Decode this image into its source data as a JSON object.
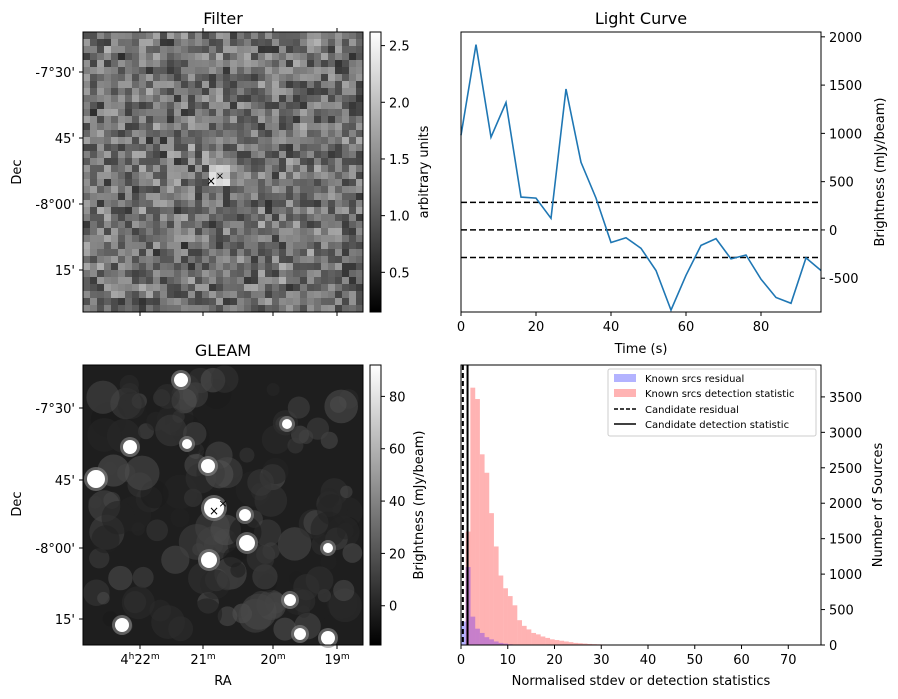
{
  "panels": {
    "filter": {
      "title": "Filter",
      "ylabel": "Dec",
      "dec_ticks": [
        "-7°30'",
        "45'",
        "-8°00'",
        "15'"
      ],
      "colorbar": {
        "label": "arbitrary units",
        "ticks": [
          "0.5",
          "1.0",
          "1.5",
          "2.0",
          "2.5"
        ]
      }
    },
    "gleam": {
      "title": "GLEAM",
      "ylabel": "Dec",
      "xlabel": "RA",
      "dec_ticks": [
        "-7°30'",
        "45'",
        "-8°00'",
        "15'"
      ],
      "ra_ticks": [
        {
          "main": "4",
          "sup1": "h",
          "mid": "22",
          "sup2": "m"
        },
        {
          "main": "21",
          "sup1": "",
          "mid": "",
          "sup2": "m"
        },
        {
          "main": "20",
          "sup1": "",
          "mid": "",
          "sup2": "m"
        },
        {
          "main": "19",
          "sup1": "",
          "mid": "",
          "sup2": "m"
        }
      ],
      "colorbar": {
        "label": "Brightness (mJy/beam)",
        "ticks": [
          "0",
          "20",
          "40",
          "60",
          "80"
        ]
      }
    },
    "lightcurve": {
      "title": "Light Curve",
      "xlabel": "Time (s)",
      "ylabel": "Brightness (mJy/beam)",
      "xticks": [
        "0",
        "20",
        "40",
        "60",
        "80"
      ],
      "yticks": [
        "-500",
        "0",
        "500",
        "1000",
        "1500",
        "2000"
      ]
    },
    "histogram": {
      "xlabel": "Normalised stdev or detection statistics",
      "ylabel": "Number of Sources",
      "xticks": [
        "0",
        "10",
        "20",
        "30",
        "40",
        "50",
        "60",
        "70"
      ],
      "yticks": [
        "0",
        "500",
        "1000",
        "1500",
        "2000",
        "2500",
        "3000",
        "3500"
      ],
      "legend": [
        "Known srcs residual",
        "Known srcs detection statistic",
        "Candidate residual",
        "Candidate detection statistic"
      ]
    }
  },
  "colors": {
    "line": "#1f77b4",
    "residual_hist": "#b3b3ff",
    "detection_hist": "#ffb3b3",
    "overlap_hist": "#c77fcb",
    "marker_blue": "#0000ff",
    "marker_red": "#ff0000"
  },
  "chart_data": [
    {
      "type": "heatmap",
      "title": "Filter",
      "ylabel": "Dec",
      "colorbar_label": "arbitrary units",
      "colorbar_range": [
        0.15,
        2.62
      ],
      "colormap": "gray"
    },
    {
      "type": "heatmap",
      "title": "GLEAM",
      "xlabel": "RA",
      "ylabel": "Dec",
      "colorbar_label": "Brightness (mJy/beam)",
      "colorbar_range": [
        -15,
        92
      ],
      "colormap": "gray"
    },
    {
      "type": "line",
      "title": "Light Curve",
      "xlabel": "Time (s)",
      "ylabel": "Brightness (mJy/beam)",
      "xlim": [
        0,
        96
      ],
      "ylim": [
        -850,
        2050
      ],
      "x": [
        0,
        4,
        8,
        12,
        16,
        20,
        24,
        28,
        32,
        36,
        40,
        44,
        48,
        52,
        56,
        60,
        64,
        68,
        72,
        76,
        80,
        84,
        88,
        92,
        96
      ],
      "y": [
        980,
        1920,
        960,
        1320,
        340,
        330,
        120,
        1460,
        700,
        330,
        -130,
        -80,
        -190,
        -420,
        -830,
        -470,
        -160,
        -90,
        -300,
        -260,
        -510,
        -700,
        -760,
        -290,
        -420
      ],
      "hlines": [
        {
          "y": 285,
          "style": "dashed"
        },
        {
          "y": 0,
          "style": "dashed"
        },
        {
          "y": -285,
          "style": "dashed"
        }
      ]
    },
    {
      "type": "bar",
      "xlabel": "Normalised stdev or detection statistics",
      "ylabel": "Number of Sources",
      "xlim": [
        0,
        77
      ],
      "ylim": [
        0,
        3950
      ],
      "bin_width": 1,
      "series": [
        {
          "name": "Known srcs residual",
          "bin_start": 0,
          "values": [
            330,
            1100,
            400,
            230,
            170,
            110,
            80,
            50,
            30,
            20,
            10,
            5
          ]
        },
        {
          "name": "Known srcs detection statistic",
          "bin_start": 0,
          "values": [
            60,
            1600,
            3630,
            3470,
            2690,
            2430,
            1860,
            1390,
            980,
            800,
            690,
            560,
            350,
            270,
            220,
            170,
            150,
            120,
            100,
            80,
            70,
            60,
            50,
            40,
            30,
            25,
            20,
            15,
            12,
            10,
            8,
            7,
            6,
            5,
            4,
            4,
            3,
            3,
            2,
            2
          ]
        }
      ],
      "vlines": [
        {
          "name": "Candidate residual",
          "x": 0.4,
          "style": "dashed"
        },
        {
          "name": "Candidate detection statistic",
          "x": 1.4,
          "style": "solid"
        }
      ]
    }
  ]
}
